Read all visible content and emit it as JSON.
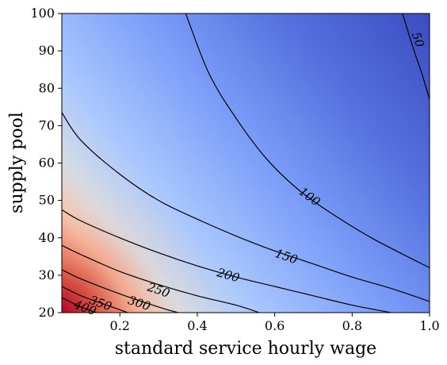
{
  "chart_data": {
    "type": "contour",
    "xlabel": "standard service hourly wage",
    "ylabel": "supply pool",
    "xlim": [
      0.05,
      1.0
    ],
    "ylim": [
      20,
      100
    ],
    "x_ticks": [
      0.2,
      0.4,
      0.6,
      0.8,
      1.0
    ],
    "x_tick_labels": [
      "0.2",
      "0.4",
      "0.6",
      "0.8",
      "1.0"
    ],
    "y_ticks": [
      20,
      30,
      40,
      50,
      60,
      70,
      80,
      90,
      100
    ],
    "y_tick_labels": [
      "20",
      "30",
      "40",
      "50",
      "60",
      "70",
      "80",
      "90",
      "100"
    ],
    "colormap": "coolwarm",
    "color_range": [
      30,
      450
    ],
    "grid": false,
    "contour_levels": [
      {
        "level": 50,
        "label": "50",
        "label_at": [
          0.97,
          93
        ],
        "points": [
          [
            0.93,
            100
          ],
          [
            0.96,
            90
          ],
          [
            0.98,
            84
          ],
          [
            1.0,
            77
          ]
        ]
      },
      {
        "level": 100,
        "label": "100",
        "label_at": [
          0.69,
          51
        ],
        "points": [
          [
            0.37,
            100
          ],
          [
            0.43,
            84
          ],
          [
            0.5,
            72
          ],
          [
            0.58,
            61
          ],
          [
            0.66,
            53
          ],
          [
            0.74,
            47
          ],
          [
            0.85,
            40
          ],
          [
            1.0,
            32
          ]
        ]
      },
      {
        "level": 150,
        "label": "150",
        "label_at": [
          0.63,
          35
        ],
        "points": [
          [
            0.05,
            73.5
          ],
          [
            0.1,
            66
          ],
          [
            0.2,
            57
          ],
          [
            0.3,
            50
          ],
          [
            0.4,
            45
          ],
          [
            0.5,
            40.5
          ],
          [
            0.6,
            36.5
          ],
          [
            0.7,
            33
          ],
          [
            0.8,
            29.5
          ],
          [
            0.9,
            26.5
          ],
          [
            1.0,
            23
          ]
        ]
      },
      {
        "level": 200,
        "label": "200",
        "label_at": [
          0.48,
          30
        ],
        "points": [
          [
            0.05,
            47.5
          ],
          [
            0.1,
            44.5
          ],
          [
            0.2,
            40
          ],
          [
            0.3,
            36
          ],
          [
            0.4,
            32.5
          ],
          [
            0.5,
            29.5
          ],
          [
            0.6,
            27
          ],
          [
            0.7,
            24.5
          ],
          [
            0.8,
            22
          ],
          [
            0.9,
            20
          ]
        ]
      },
      {
        "level": 250,
        "label": "250",
        "label_at": [
          0.3,
          26
        ],
        "points": [
          [
            0.05,
            38
          ],
          [
            0.1,
            35.5
          ],
          [
            0.2,
            31
          ],
          [
            0.3,
            27.5
          ],
          [
            0.4,
            24.5
          ],
          [
            0.5,
            22
          ],
          [
            0.56,
            20
          ]
        ]
      },
      {
        "level": 300,
        "label": "300",
        "label_at": [
          0.25,
          22.5
        ],
        "points": [
          [
            0.05,
            31.5
          ],
          [
            0.1,
            29
          ],
          [
            0.2,
            25
          ],
          [
            0.3,
            21.5
          ],
          [
            0.35,
            20
          ]
        ]
      },
      {
        "level": 350,
        "label": "350",
        "label_at": [
          0.15,
          22.5
        ],
        "points": [
          [
            0.05,
            27
          ],
          [
            0.1,
            24.5
          ],
          [
            0.18,
            21.5
          ],
          [
            0.22,
            20
          ]
        ]
      },
      {
        "level": 400,
        "label": "400",
        "label_at": [
          0.11,
          21.3
        ],
        "points": [
          [
            0.05,
            24
          ],
          [
            0.1,
            21.5
          ],
          [
            0.14,
            20
          ]
        ]
      }
    ]
  }
}
